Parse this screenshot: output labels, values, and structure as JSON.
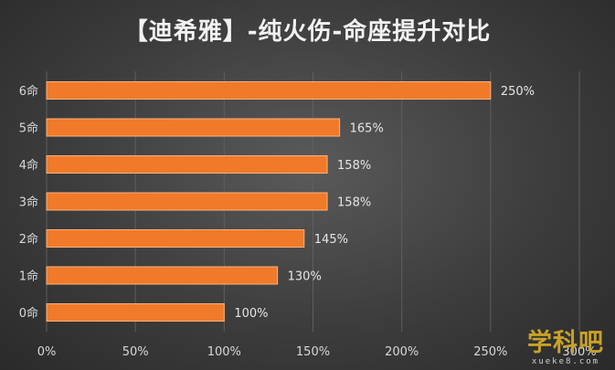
{
  "chart_data": {
    "type": "bar",
    "orientation": "horizontal",
    "title": "【迪希雅】-纯火伤-命座提升对比",
    "categories": [
      "6命",
      "5命",
      "4命",
      "3命",
      "2命",
      "1命",
      "0命"
    ],
    "values": [
      250,
      165,
      158,
      158,
      145,
      130,
      100
    ],
    "data_labels": [
      "250%",
      "165%",
      "158%",
      "158%",
      "145%",
      "130%",
      "100%"
    ],
    "x_ticks": [
      "0%",
      "50%",
      "100%",
      "150%",
      "200%",
      "250%",
      "300%"
    ],
    "xlim": [
      0,
      300
    ],
    "xlabel": "",
    "ylabel": "",
    "grid": "vertical",
    "legend": "none",
    "bar_color": "#f07a2a",
    "bar_edge_color": "#ffb27a",
    "grid_color": "#5e5e5e",
    "background_color": "#3d3d3d"
  },
  "watermark": {
    "main": "学科吧",
    "sub": "xueke8.com"
  }
}
